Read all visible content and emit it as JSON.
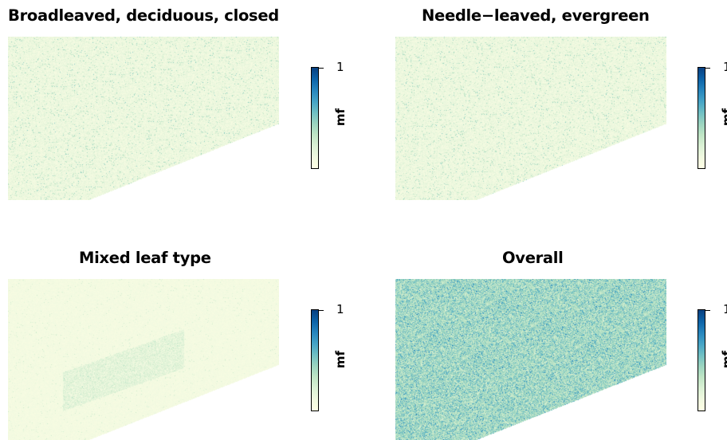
{
  "panels": [
    {
      "title": "Broadleaved, deciduous, closed",
      "legend": {
        "title": "mf",
        "max_label": "1"
      }
    },
    {
      "title": "Needle−leaved, evergreen",
      "legend": {
        "title": "mf",
        "max_label": "1"
      }
    },
    {
      "title": "Mixed leaf type",
      "legend": {
        "title": "mf",
        "max_label": "1"
      }
    },
    {
      "title": "Overall",
      "legend": {
        "title": "mf",
        "max_label": "1"
      }
    }
  ],
  "colors": {
    "ramp": [
      "#ffffe5",
      "#f0f9e0",
      "#dbf1d5",
      "#bfe5c5",
      "#9bd4c0",
      "#6fbfc4",
      "#45a3c6",
      "#2685bd",
      "#0c63a8",
      "#084081"
    ],
    "background": "#ffffff"
  },
  "chart_data": [
    {
      "type": "heatmap",
      "title": "Broadleaved, deciduous, closed",
      "legend_title": "mf",
      "scale": [
        0,
        1
      ],
      "legend_ticks": [
        "1"
      ],
      "intensity": "low, speckled"
    },
    {
      "type": "heatmap",
      "title": "Needle−leaved, evergreen",
      "legend_title": "mf",
      "scale": [
        0,
        1
      ],
      "legend_ticks": [
        "1"
      ],
      "intensity": "low, speckled"
    },
    {
      "type": "heatmap",
      "title": "Mixed leaf type",
      "legend_title": "mf",
      "scale": [
        0,
        1
      ],
      "legend_ticks": [
        "1"
      ],
      "intensity": "very low, central band slightly higher"
    },
    {
      "type": "heatmap",
      "title": "Overall",
      "legend_title": "mf",
      "scale": [
        0,
        1
      ],
      "legend_ticks": [
        "1"
      ],
      "intensity": "moderate, mostly mid-range values"
    }
  ]
}
